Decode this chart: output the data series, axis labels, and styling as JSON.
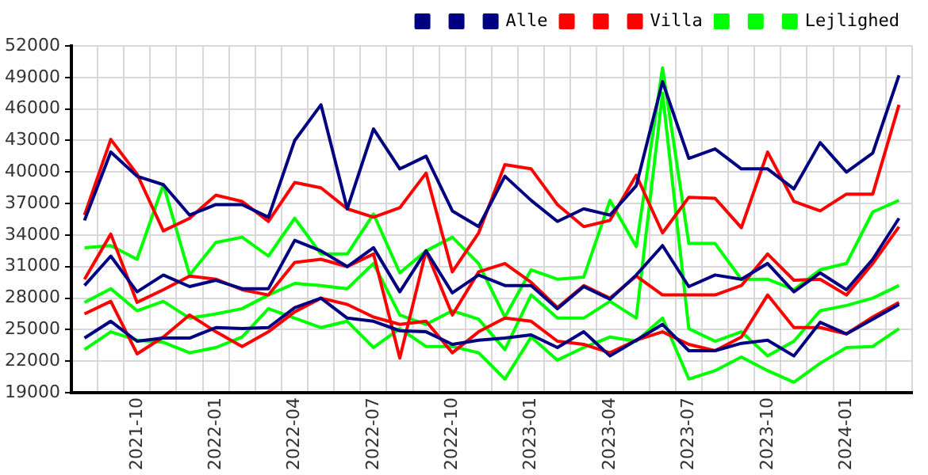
{
  "chart_data": {
    "type": "line",
    "categories": [
      null,
      null,
      "2021-10",
      null,
      null,
      "2022-01",
      null,
      null,
      "2022-04",
      null,
      null,
      "2022-07",
      null,
      null,
      "2022-10",
      null,
      null,
      "2023-01",
      null,
      null,
      "2023-04",
      null,
      null,
      "2023-07",
      null,
      null,
      "2023-10",
      null,
      null,
      "2024-01",
      null,
      null
    ],
    "series": [
      {
        "color": "#000080",
        "values": [
          35400,
          41900,
          39600,
          38800,
          35900,
          36900,
          36900,
          35700,
          43000,
          46400,
          36500,
          44100,
          40300,
          41500,
          36300,
          34800,
          39600,
          37300,
          35300,
          36500,
          35900,
          38700,
          48600,
          41300,
          42200,
          40300,
          40300,
          38400,
          42800,
          40000,
          41800,
          49200
        ]
      },
      {
        "color": "#000080",
        "values": [
          24200,
          25800,
          23900,
          24200,
          24200,
          25200,
          25100,
          25200,
          27100,
          28000,
          26100,
          25800,
          24900,
          24800,
          23600,
          24000,
          24200,
          24500,
          23300,
          24800,
          22500,
          24000,
          25500,
          23000,
          23000,
          23700,
          24000,
          22500,
          25700,
          24600,
          26000,
          27400
        ]
      },
      {
        "name": "Alle",
        "color": "#000080",
        "values": [
          29200,
          32000,
          28600,
          30200,
          29100,
          29700,
          28900,
          28900,
          33500,
          32500,
          31000,
          32800,
          28600,
          32500,
          28500,
          30200,
          29200,
          29200,
          27000,
          29100,
          27900,
          30200,
          33000,
          29100,
          30200,
          29800,
          31300,
          28600,
          30400,
          28800,
          31700,
          35600
        ]
      },
      {
        "color": "#ff0000",
        "values": [
          35900,
          43100,
          39800,
          34400,
          35600,
          37800,
          37200,
          35300,
          39000,
          38500,
          36500,
          35700,
          36600,
          39900,
          30500,
          34200,
          40700,
          40300,
          36900,
          34800,
          35400,
          39700,
          34200,
          37600,
          37500,
          34700,
          41900,
          37200,
          36300,
          37900,
          37900,
          46400
        ]
      },
      {
        "color": "#ff0000",
        "values": [
          26500,
          27700,
          22700,
          24300,
          26400,
          24800,
          23400,
          24800,
          26700,
          28000,
          27400,
          26200,
          25500,
          25800,
          22800,
          24800,
          26100,
          25800,
          23900,
          23600,
          22800,
          24000,
          24800,
          23600,
          23000,
          24300,
          28300,
          25200,
          25200,
          24600,
          26200,
          27600
        ]
      },
      {
        "name": "Villa",
        "color": "#ff0000",
        "values": [
          29800,
          34100,
          27600,
          28800,
          30100,
          29800,
          28800,
          28300,
          31400,
          31700,
          31000,
          32200,
          22300,
          32500,
          26400,
          30500,
          31300,
          29500,
          27100,
          29200,
          28000,
          30100,
          28300,
          28300,
          28300,
          29200,
          32200,
          29700,
          29800,
          28300,
          31300,
          34800
        ]
      },
      {
        "color": "#00ff00",
        "values": [
          32800,
          33000,
          31700,
          38800,
          30200,
          33300,
          33800,
          32000,
          35600,
          32200,
          32200,
          36000,
          30400,
          32500,
          33800,
          31300,
          26200,
          30700,
          29800,
          30000,
          37300,
          32900,
          49900,
          33200,
          33200,
          29800,
          29800,
          28800,
          30700,
          31300,
          36200,
          37300
        ]
      },
      {
        "color": "#00ff00",
        "values": [
          23100,
          24800,
          24000,
          23800,
          22800,
          23300,
          24300,
          27000,
          26100,
          25200,
          25800,
          23300,
          25100,
          23400,
          23400,
          22800,
          20300,
          24300,
          22100,
          23300,
          24300,
          23900,
          26100,
          20300,
          21100,
          22400,
          21100,
          20000,
          21800,
          23300,
          23400,
          25100
        ]
      },
      {
        "name": "Lejlighed",
        "color": "#00ff00",
        "values": [
          27600,
          28900,
          26800,
          27700,
          26100,
          26500,
          27000,
          28300,
          29400,
          29200,
          28900,
          31300,
          26400,
          25500,
          26800,
          26000,
          23100,
          28300,
          26100,
          26100,
          27700,
          26100,
          47500,
          25100,
          23900,
          24800,
          22500,
          23900,
          26800,
          27300,
          28000,
          29200
        ]
      }
    ],
    "ylim": [
      19000,
      52000
    ],
    "yticks": [
      19000,
      22000,
      25000,
      28000,
      31000,
      34000,
      37000,
      40000,
      43000,
      46000,
      49000,
      52000
    ],
    "grid": true,
    "legend": "top right",
    "marker": "none",
    "line_style": "solid"
  }
}
